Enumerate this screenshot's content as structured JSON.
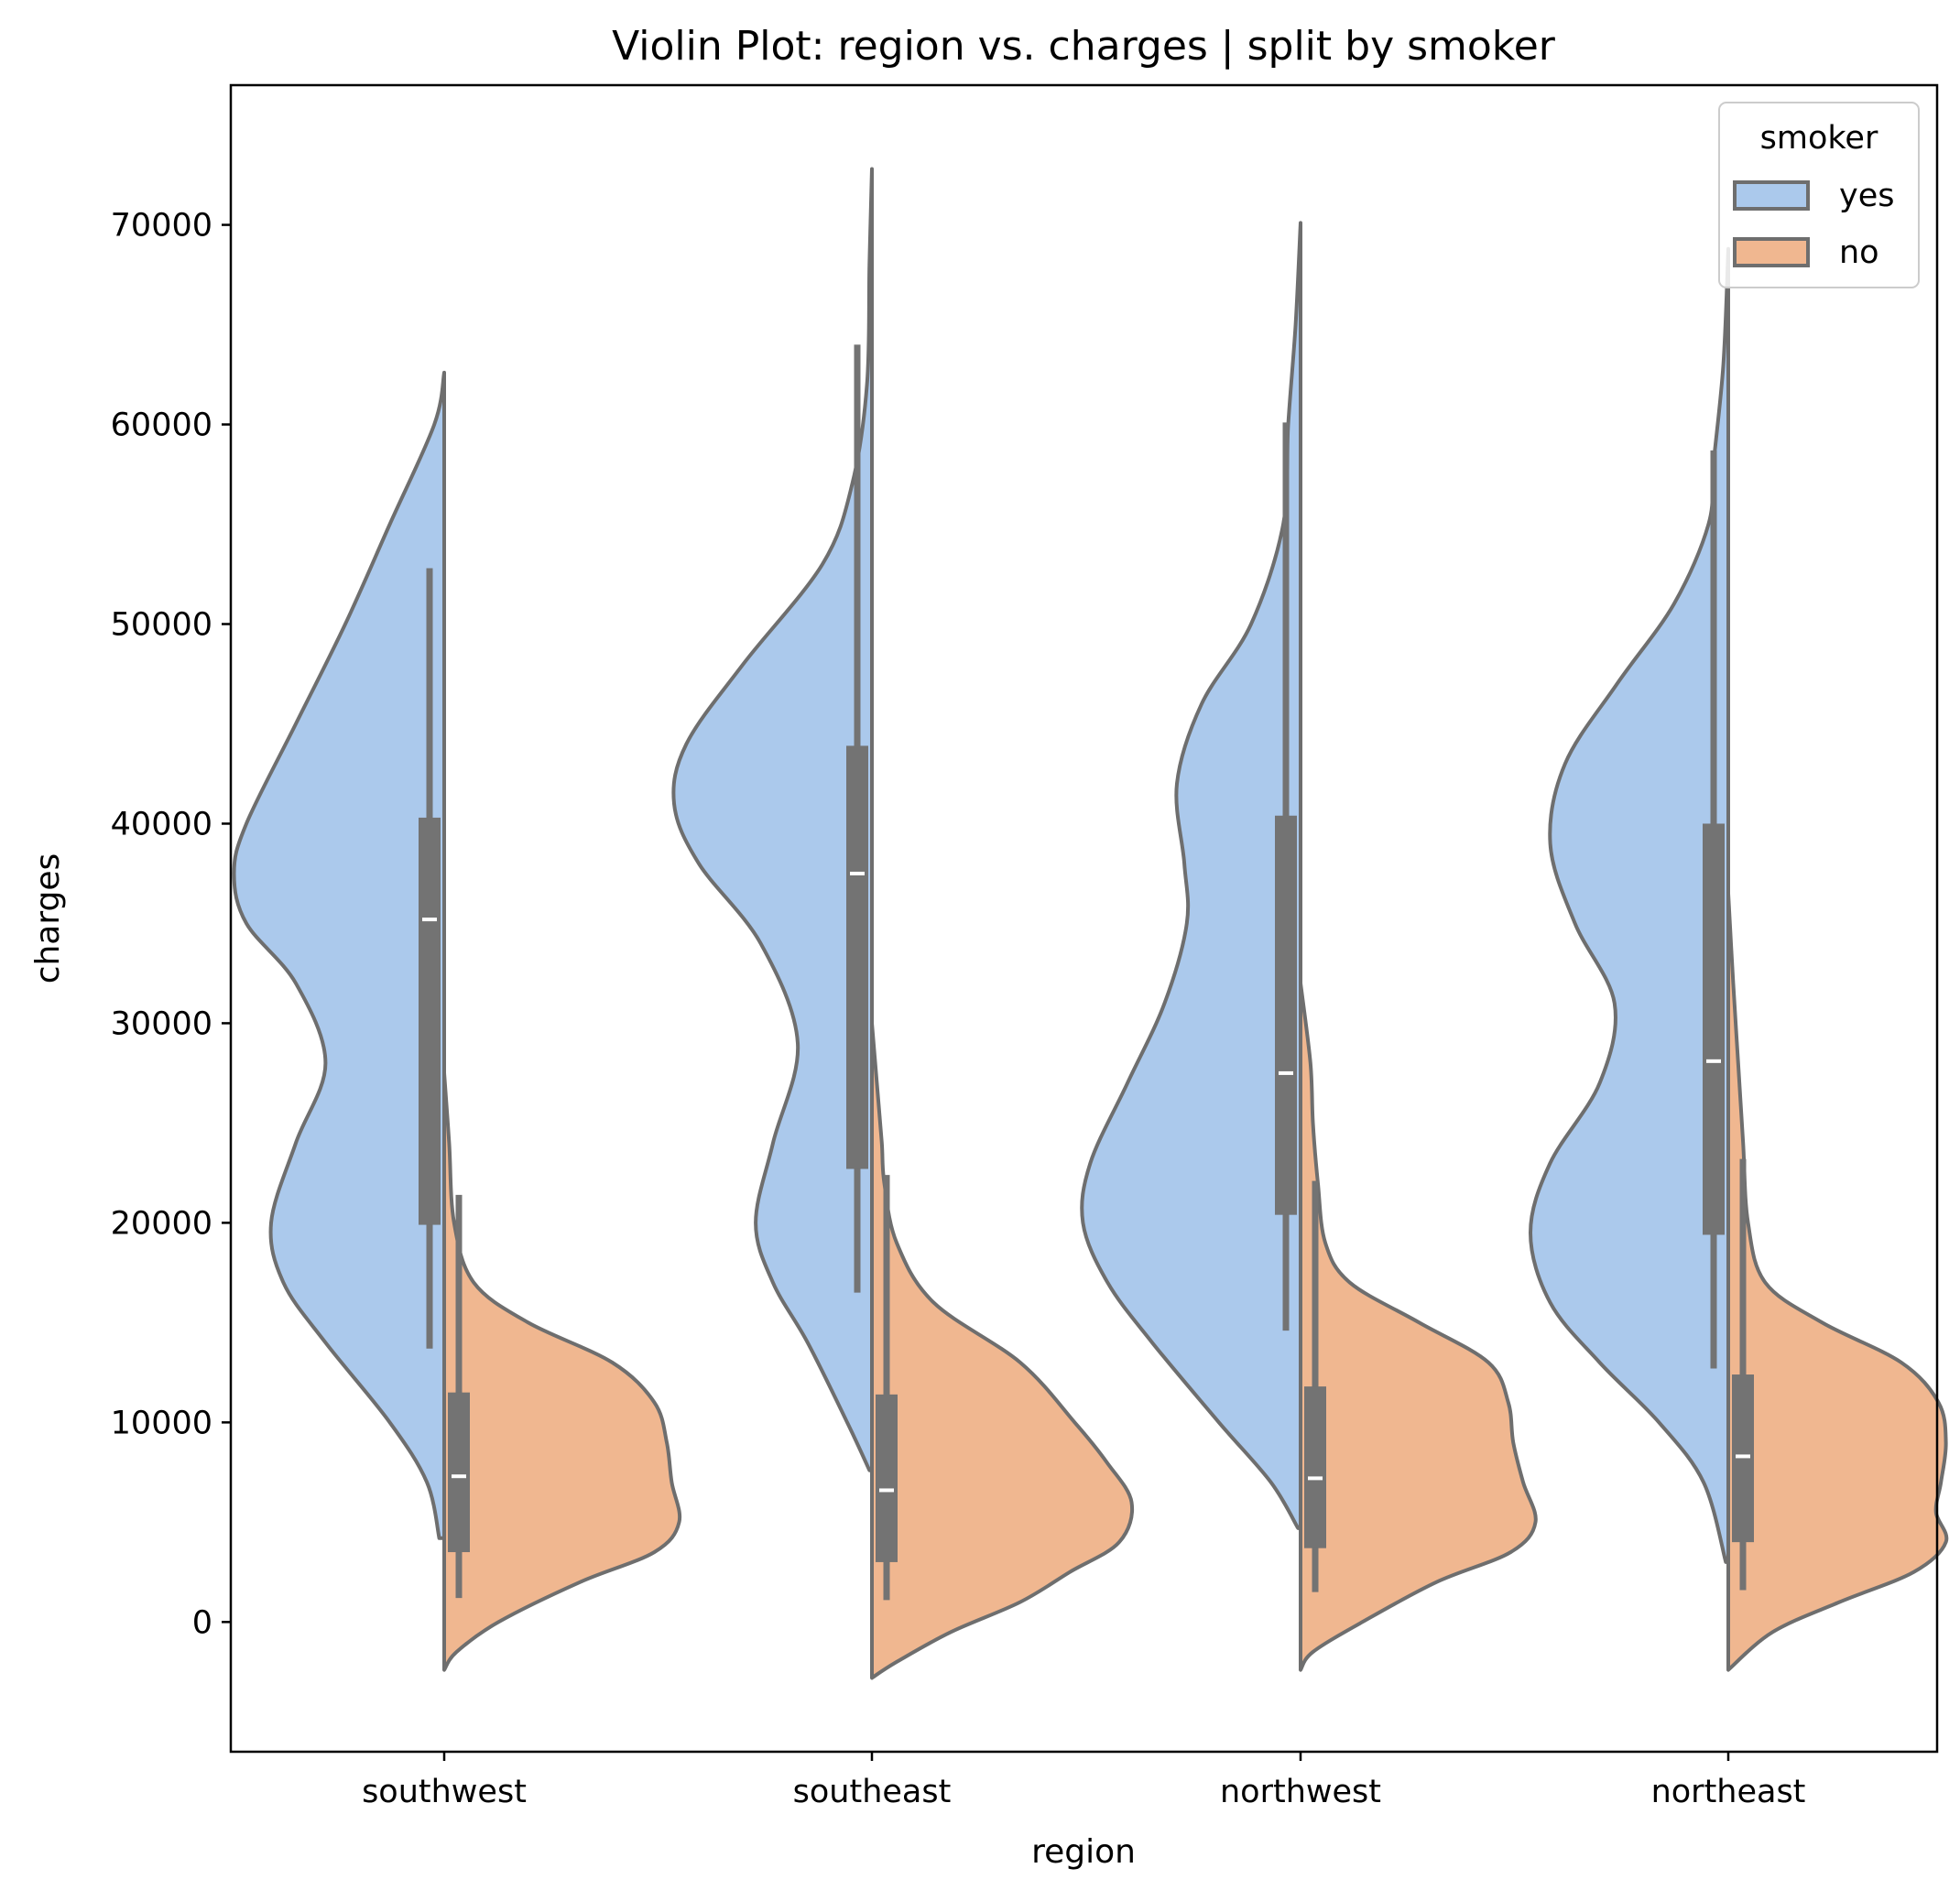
{
  "chart_data": {
    "type": "violin",
    "title": "Violin Plot: region vs. charges | split by smoker",
    "xlabel": "region",
    "ylabel": "charges",
    "categories": [
      "southwest",
      "southeast",
      "northwest",
      "northeast"
    ],
    "ylim": [
      -6500,
      77000
    ],
    "yticks": [
      0,
      10000,
      20000,
      30000,
      40000,
      50000,
      60000,
      70000
    ],
    "legend": {
      "title": "smoker",
      "position": "top-right",
      "entries": [
        {
          "label": "yes",
          "color": "#abc9ec"
        },
        {
          "label": "no",
          "color": "#f0b790"
        }
      ]
    },
    "colors": {
      "yes": "#abc9ec",
      "no": "#f0b790",
      "outline": "#6e6e6e",
      "inner_box": "#737373"
    },
    "series": [
      {
        "name": "yes",
        "side": "left",
        "violins": [
          {
            "category": "southwest",
            "profile": [
              [
                62600,
                0
              ],
              [
                60000,
                0.04
              ],
              [
                55000,
                0.22
              ],
              [
                50000,
                0.4
              ],
              [
                45000,
                0.6
              ],
              [
                40000,
                0.8
              ],
              [
                37500,
                0.85
              ],
              [
                35000,
                0.8
              ],
              [
                32000,
                0.6
              ],
              [
                28000,
                0.48
              ],
              [
                24000,
                0.6
              ],
              [
                20000,
                0.7
              ],
              [
                17000,
                0.65
              ],
              [
                14000,
                0.48
              ],
              [
                10000,
                0.22
              ],
              [
                7000,
                0.07
              ],
              [
                4200,
                0.02
              ]
            ],
            "box": {
              "whisker_low": 13700,
              "q1": 19900,
              "median": 35200,
              "q3": 40300,
              "whisker_high": 52800
            }
          },
          {
            "category": "southeast",
            "profile": [
              [
                72800,
                0
              ],
              [
                68000,
                0.01
              ],
              [
                62000,
                0.02
              ],
              [
                57000,
                0.08
              ],
              [
                53000,
                0.2
              ],
              [
                48000,
                0.52
              ],
              [
                44000,
                0.75
              ],
              [
                41000,
                0.8
              ],
              [
                38000,
                0.7
              ],
              [
                34000,
                0.45
              ],
              [
                29000,
                0.3
              ],
              [
                24000,
                0.4
              ],
              [
                20000,
                0.47
              ],
              [
                17000,
                0.4
              ],
              [
                14000,
                0.26
              ],
              [
                10000,
                0.1
              ],
              [
                7600,
                0.01
              ]
            ],
            "box": {
              "whisker_low": 16500,
              "q1": 22700,
              "median": 37500,
              "q3": 43900,
              "whisker_high": 64000
            }
          },
          {
            "category": "northwest",
            "profile": [
              [
                70100,
                0
              ],
              [
                65000,
                0.02
              ],
              [
                60000,
                0.05
              ],
              [
                55000,
                0.07
              ],
              [
                50000,
                0.2
              ],
              [
                46000,
                0.4
              ],
              [
                42000,
                0.5
              ],
              [
                38000,
                0.47
              ],
              [
                35000,
                0.46
              ],
              [
                31000,
                0.55
              ],
              [
                27000,
                0.7
              ],
              [
                23000,
                0.85
              ],
              [
                20000,
                0.88
              ],
              [
                17000,
                0.78
              ],
              [
                14000,
                0.6
              ],
              [
                10000,
                0.33
              ],
              [
                7000,
                0.12
              ],
              [
                4700,
                0.01
              ]
            ],
            "box": {
              "whisker_low": 14600,
              "q1": 20400,
              "median": 27500,
              "q3": 40400,
              "whisker_high": 60100
            }
          },
          {
            "category": "northeast",
            "profile": [
              [
                68800,
                0
              ],
              [
                63000,
                0.02
              ],
              [
                58000,
                0.06
              ],
              [
                55000,
                0.08
              ],
              [
                51000,
                0.22
              ],
              [
                47000,
                0.45
              ],
              [
                43000,
                0.66
              ],
              [
                39000,
                0.72
              ],
              [
                35000,
                0.62
              ],
              [
                31000,
                0.46
              ],
              [
                27000,
                0.52
              ],
              [
                23000,
                0.72
              ],
              [
                19500,
                0.8
              ],
              [
                16000,
                0.72
              ],
              [
                13000,
                0.52
              ],
              [
                10000,
                0.28
              ],
              [
                7000,
                0.1
              ],
              [
                3000,
                0.01
              ]
            ],
            "box": {
              "whisker_low": 12700,
              "q1": 19400,
              "median": 28100,
              "q3": 40000,
              "whisker_high": 58700
            }
          }
        ]
      },
      {
        "name": "no",
        "side": "right",
        "violins": [
          {
            "category": "southwest",
            "profile": [
              [
                27500,
                0
              ],
              [
                24000,
                0.02
              ],
              [
                20000,
                0.04
              ],
              [
                17000,
                0.12
              ],
              [
                15000,
                0.34
              ],
              [
                13000,
                0.68
              ],
              [
                11000,
                0.85
              ],
              [
                9000,
                0.9
              ],
              [
                7000,
                0.92
              ],
              [
                5000,
                0.95
              ],
              [
                3500,
                0.85
              ],
              [
                2000,
                0.55
              ],
              [
                0,
                0.22
              ],
              [
                -1500,
                0.05
              ],
              [
                -2400,
                0
              ]
            ],
            "box": {
              "whisker_low": 1200,
              "q1": 3500,
              "median": 7300,
              "q3": 11500,
              "whisker_high": 21400
            }
          },
          {
            "category": "southeast",
            "profile": [
              [
                30000,
                0
              ],
              [
                27000,
                0.02
              ],
              [
                24000,
                0.04
              ],
              [
                22000,
                0.05
              ],
              [
                19000,
                0.1
              ],
              [
                16000,
                0.25
              ],
              [
                13000,
                0.6
              ],
              [
                10000,
                0.82
              ],
              [
                8000,
                0.95
              ],
              [
                6000,
                1.05
              ],
              [
                4000,
                1.0
              ],
              [
                2500,
                0.8
              ],
              [
                1000,
                0.6
              ],
              [
                -500,
                0.32
              ],
              [
                -2000,
                0.1
              ],
              [
                -2800,
                0
              ]
            ],
            "box": {
              "whisker_low": 1100,
              "q1": 3000,
              "median": 6600,
              "q3": 11400,
              "whisker_high": 22400
            }
          },
          {
            "category": "northwest",
            "profile": [
              [
                32000,
                0
              ],
              [
                28000,
                0.04
              ],
              [
                25000,
                0.05
              ],
              [
                22000,
                0.07
              ],
              [
                19000,
                0.1
              ],
              [
                17000,
                0.2
              ],
              [
                15000,
                0.48
              ],
              [
                13000,
                0.76
              ],
              [
                11000,
                0.84
              ],
              [
                9000,
                0.86
              ],
              [
                7000,
                0.9
              ],
              [
                5000,
                0.95
              ],
              [
                3500,
                0.85
              ],
              [
                2000,
                0.55
              ],
              [
                0,
                0.25
              ],
              [
                -1500,
                0.05
              ],
              [
                -2400,
                0
              ]
            ],
            "box": {
              "whisker_low": 1500,
              "q1": 3700,
              "median": 7200,
              "q3": 11800,
              "whisker_high": 22100
            }
          },
          {
            "category": "northeast",
            "profile": [
              [
                36500,
                0
              ],
              [
                32000,
                0.02
              ],
              [
                28000,
                0.04
              ],
              [
                24000,
                0.06
              ],
              [
                20000,
                0.08
              ],
              [
                17000,
                0.15
              ],
              [
                15000,
                0.38
              ],
              [
                13000,
                0.7
              ],
              [
                11000,
                0.85
              ],
              [
                9000,
                0.88
              ],
              [
                7000,
                0.86
              ],
              [
                5500,
                0.84
              ],
              [
                4000,
                0.88
              ],
              [
                2500,
                0.75
              ],
              [
                1000,
                0.45
              ],
              [
                -500,
                0.18
              ],
              [
                -2400,
                0
              ]
            ],
            "box": {
              "whisker_low": 1600,
              "q1": 4000,
              "median": 8300,
              "q3": 12400,
              "whisker_high": 23200
            }
          }
        ]
      }
    ]
  }
}
